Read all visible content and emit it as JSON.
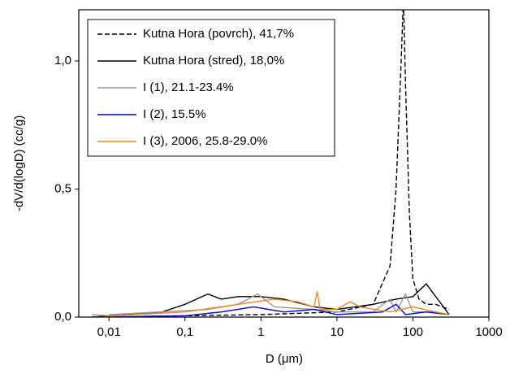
{
  "chart_data": {
    "type": "line",
    "xlabel": "D (μm)",
    "ylabel": "-dV/d(logD) (cc/g)",
    "xscale": "log",
    "xlim": [
      0.004,
      1000
    ],
    "ylim": [
      0,
      1.2
    ],
    "xticks": [
      {
        "value": 0.01,
        "label": "0,01"
      },
      {
        "value": 0.1,
        "label": "0,1"
      },
      1,
      10,
      100,
      1000
    ],
    "yticks": [
      {
        "value": 0,
        "label": "0,0"
      },
      {
        "value": 0.5,
        "label": "0,5"
      },
      {
        "value": 1.0,
        "label": "1,0"
      }
    ],
    "legend": "upper-left",
    "series": [
      {
        "name": "Kutna Hora (povrch), 41,7%",
        "color": "#000000",
        "dashed": true,
        "x": [
          0.006,
          0.1,
          1,
          10,
          30,
          50,
          60,
          70,
          75,
          80,
          90,
          100,
          120,
          150,
          200,
          300
        ],
        "values": [
          0,
          0.005,
          0.01,
          0.02,
          0.05,
          0.2,
          0.5,
          1.0,
          1.25,
          0.9,
          0.4,
          0.15,
          0.07,
          0.05,
          0.05,
          0.03
        ]
      },
      {
        "name": "Kutna Hora (stred), 18,0%",
        "color": "#000000",
        "dashed": false,
        "x": [
          0.006,
          0.05,
          0.1,
          0.2,
          0.3,
          0.5,
          1,
          2,
          5,
          10,
          30,
          60,
          100,
          150,
          200,
          300
        ],
        "values": [
          0,
          0.02,
          0.05,
          0.09,
          0.07,
          0.08,
          0.08,
          0.07,
          0.04,
          0.03,
          0.05,
          0.07,
          0.08,
          0.13,
          0.08,
          0.01
        ]
      },
      {
        "name": "I (1), 21.1-23.4%",
        "color": "#999999",
        "dashed": false,
        "x": [
          0.01,
          0.2,
          0.5,
          0.9,
          1.5,
          5,
          10,
          30,
          50,
          60,
          80,
          100,
          200,
          300
        ],
        "values": [
          0.01,
          0.03,
          0.05,
          0.09,
          0.04,
          0.03,
          0.02,
          0.02,
          0.07,
          0.02,
          0.09,
          0.02,
          0.02,
          0.01
        ]
      },
      {
        "name": "I (2), 15.5%",
        "color": "#0000cc",
        "dashed": false,
        "x": [
          0.006,
          0.1,
          0.3,
          0.8,
          2,
          5,
          10,
          40,
          60,
          80,
          150,
          300
        ],
        "values": [
          0,
          0.005,
          0.02,
          0.04,
          0.02,
          0.03,
          0.01,
          0.02,
          0.05,
          0.01,
          0.02,
          0.01
        ]
      },
      {
        "name": "I (3), 2006, 25.8-29.0%",
        "color": "#e8892a",
        "dashed": false,
        "x": [
          0.006,
          0.01,
          0.1,
          0.5,
          1.5,
          3,
          5,
          5.5,
          6,
          10,
          15,
          20,
          50,
          100,
          200,
          300
        ],
        "values": [
          0.01,
          0.005,
          0.02,
          0.05,
          0.07,
          0.06,
          0.04,
          0.1,
          0.03,
          0.03,
          0.06,
          0.04,
          0.02,
          0.04,
          0.02,
          0.01
        ]
      }
    ]
  }
}
